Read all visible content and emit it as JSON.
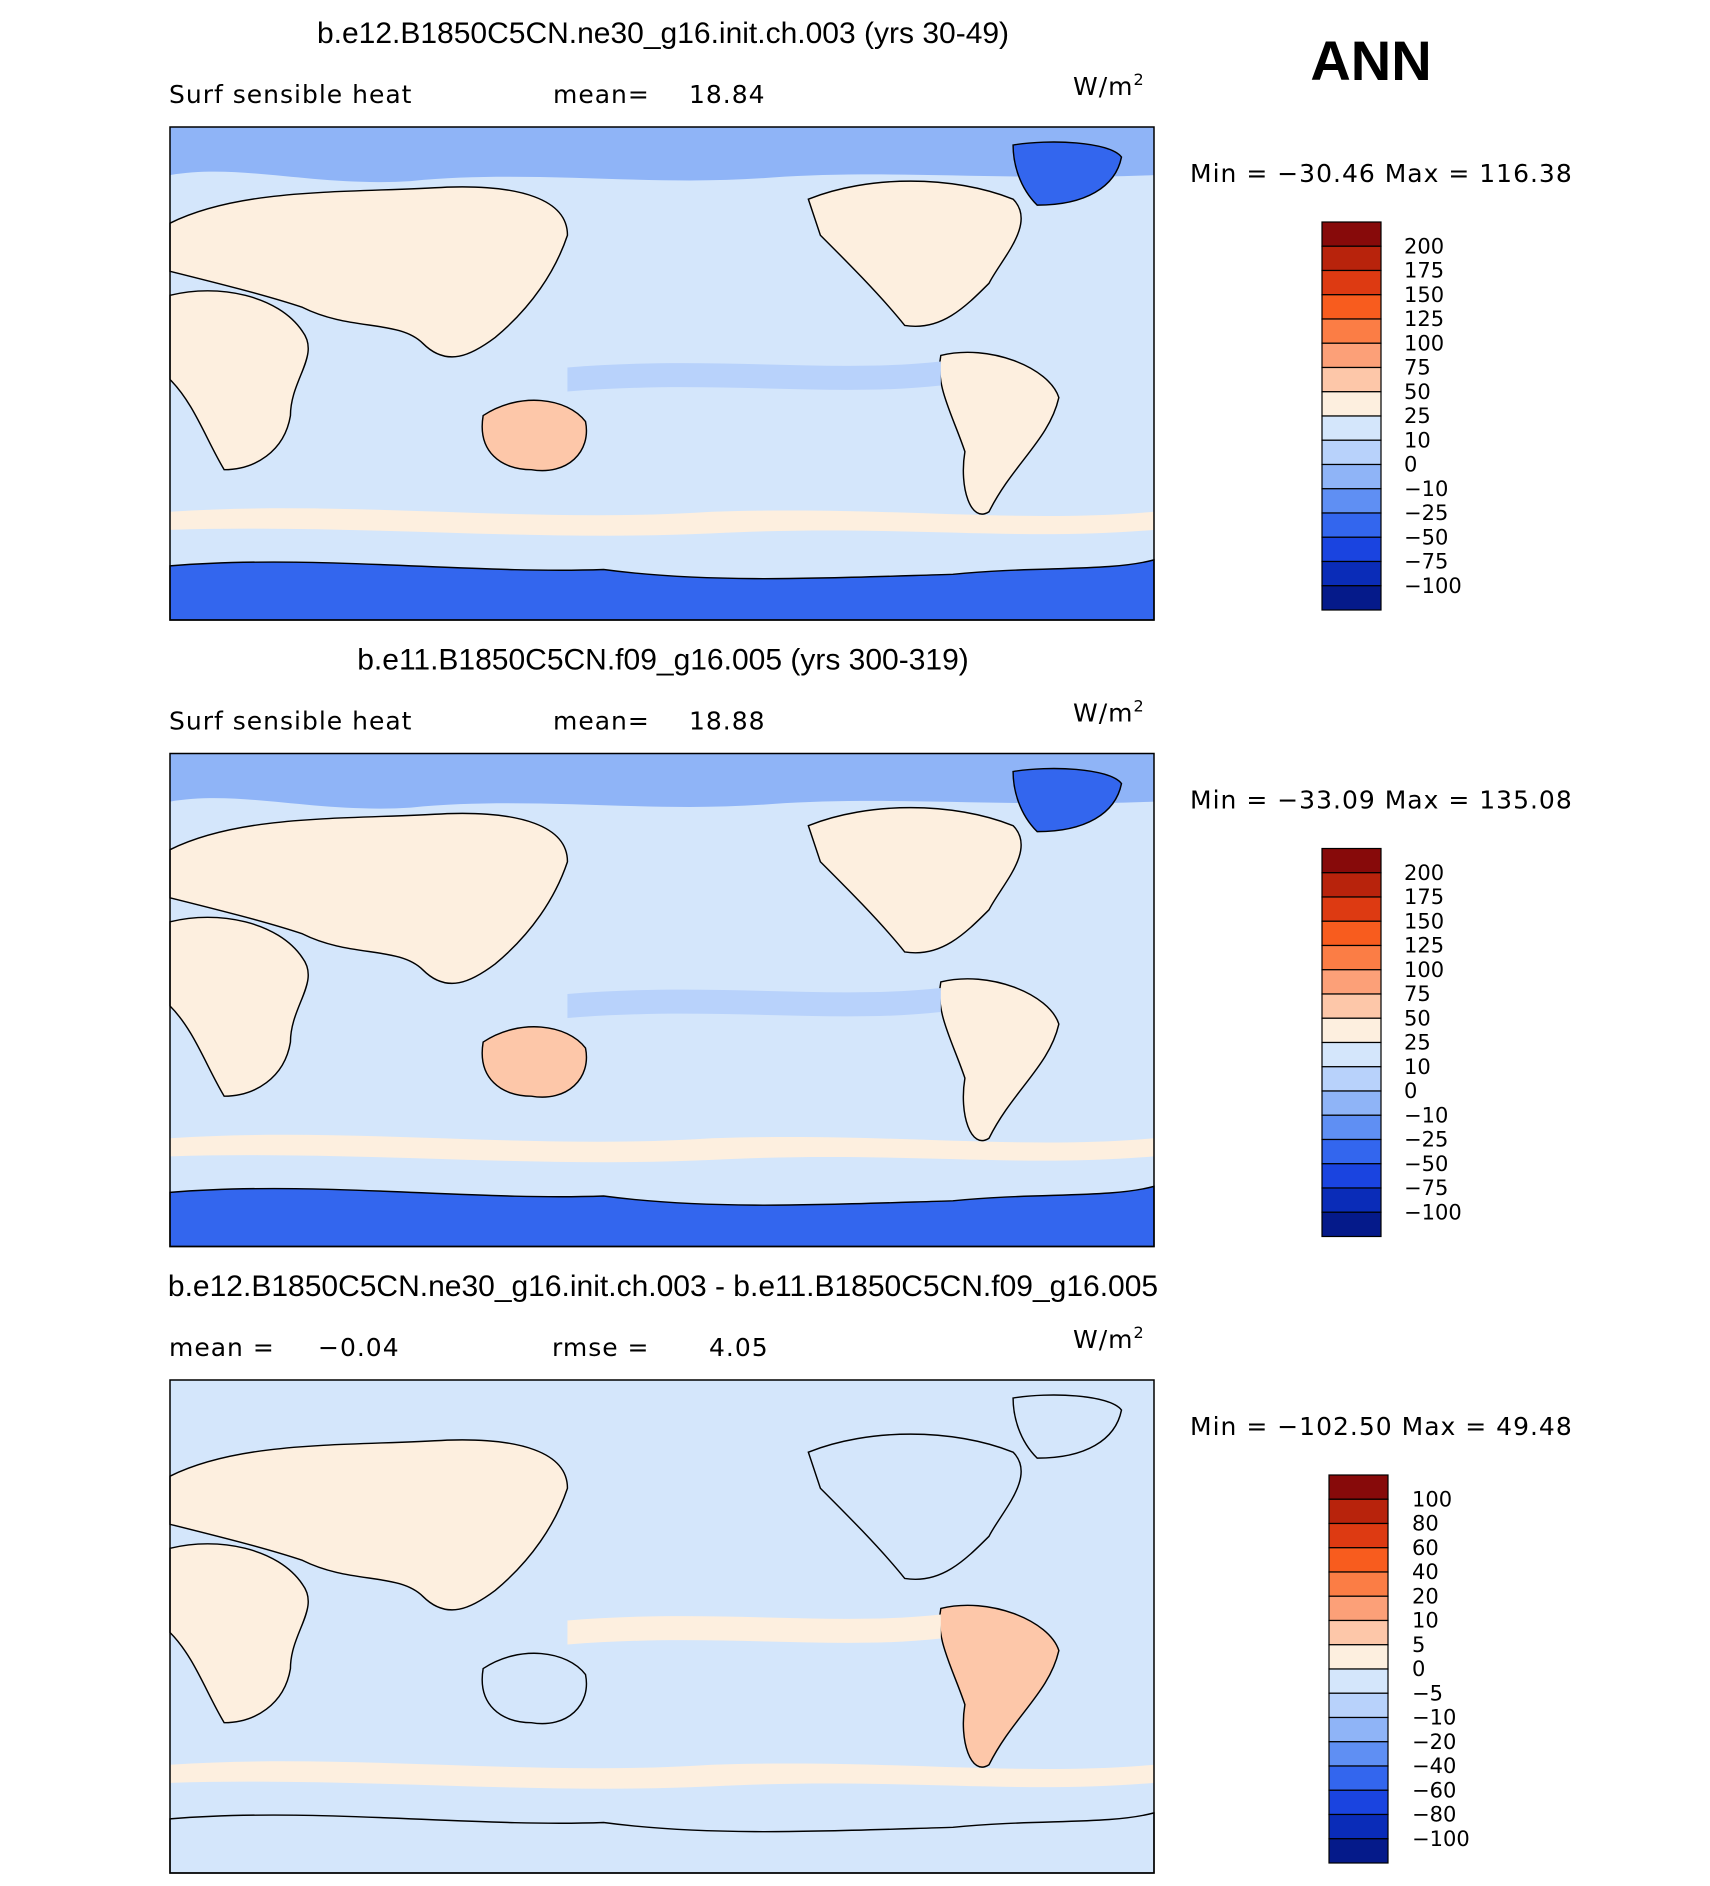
{
  "title": "ANN",
  "colors": [
    "#870a0a",
    "#b8230c",
    "#dd3a12",
    "#f85c1e",
    "#fb7d45",
    "#fca078",
    "#fdc7a9",
    "#fdefdf",
    "#d4e6fb",
    "#b8d2fb",
    "#8fb4f7",
    "#5f8ff3",
    "#3366ee",
    "#1a44e0",
    "#0a2cb8",
    "#051a8a"
  ],
  "panels": [
    {
      "title": "b.e12.B1850C5CN.ne30_g16.init.ch.003 (yrs 30-49)",
      "header": [
        "Surf sensible heat",
        "mean=",
        "18.84"
      ],
      "units": "W/m",
      "units_exponent": "2",
      "range": [
        "Min",
        "=",
        "−30.46",
        "Max",
        "=",
        "116.38"
      ],
      "levels": [
        "200",
        "175",
        "150",
        "125",
        "100",
        "75",
        "50",
        "25",
        "10",
        "0",
        "−10",
        "−25",
        "−50",
        "−75",
        "−100"
      ]
    },
    {
      "title": "b.e11.B1850C5CN.f09_g16.005 (yrs 300-319)",
      "header": [
        "Surf sensible heat",
        "mean=",
        "18.88"
      ],
      "units": "W/m",
      "units_exponent": "2",
      "range": [
        "Min",
        "=",
        "−33.09",
        "Max",
        "=",
        "135.08"
      ],
      "levels": [
        "200",
        "175",
        "150",
        "125",
        "100",
        "75",
        "50",
        "25",
        "10",
        "0",
        "−10",
        "−25",
        "−50",
        "−75",
        "−100"
      ]
    },
    {
      "title": "b.e12.B1850C5CN.ne30_g16.init.ch.003 - b.e11.B1850C5CN.f09_g16.005",
      "header": [
        "mean =",
        "−0.04",
        "rmse =",
        "4.05"
      ],
      "units": "W/m",
      "units_exponent": "2",
      "range": [
        "Min",
        "=",
        "−102.50",
        "Max",
        "=",
        "49.48"
      ],
      "levels": [
        "100",
        "80",
        "60",
        "40",
        "20",
        "10",
        "5",
        "0",
        "−5",
        "−10",
        "−20",
        "−40",
        "−60",
        "−80",
        "−100"
      ]
    }
  ]
}
